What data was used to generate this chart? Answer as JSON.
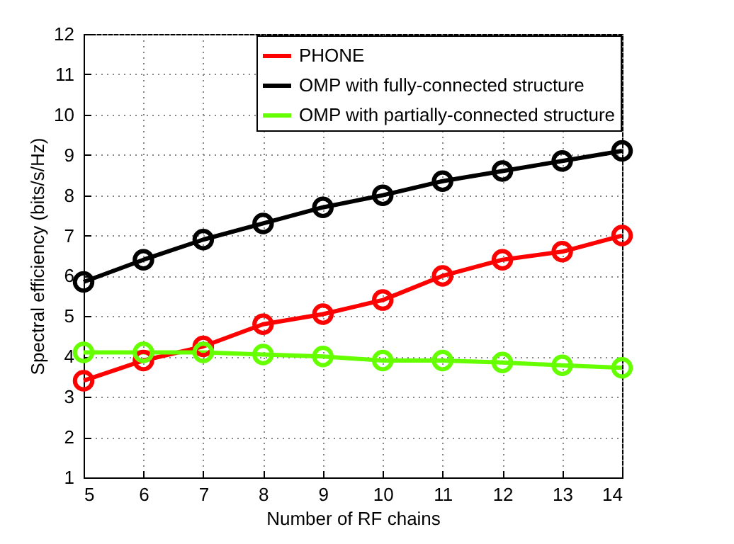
{
  "chart_data": {
    "type": "line",
    "xlabel": "Number of RF chains",
    "ylabel": "Spectral efficiency (bits/s/Hz)",
    "x": [
      5,
      6,
      7,
      8,
      9,
      10,
      11,
      12,
      13,
      14
    ],
    "series": [
      {
        "name": "PHONE",
        "color": "#ff0000",
        "values": [
          3.4,
          3.9,
          4.25,
          4.8,
          5.05,
          5.4,
          6.0,
          6.4,
          6.6,
          7.0
        ]
      },
      {
        "name": "OMP with fully-connected structure",
        "color": "#000000",
        "values": [
          5.85,
          6.4,
          6.9,
          7.3,
          7.7,
          8.0,
          8.35,
          8.6,
          8.85,
          9.1
        ]
      },
      {
        "name": "OMP with partially-connected structure",
        "color": "#66ff00",
        "values": [
          4.1,
          4.1,
          4.1,
          4.05,
          4.0,
          3.9,
          3.9,
          3.85,
          3.78,
          3.72
        ]
      }
    ],
    "xlim": [
      5,
      14
    ],
    "xticks": [
      5,
      6,
      7,
      8,
      9,
      10,
      11,
      12,
      13,
      14
    ],
    "ylim": [
      1,
      12
    ],
    "yticks": [
      1,
      2,
      3,
      4,
      5,
      6,
      7,
      8,
      9,
      10,
      11,
      12
    ],
    "grid": true,
    "legend": "top right",
    "marker": "circle",
    "line_style": "solid"
  }
}
